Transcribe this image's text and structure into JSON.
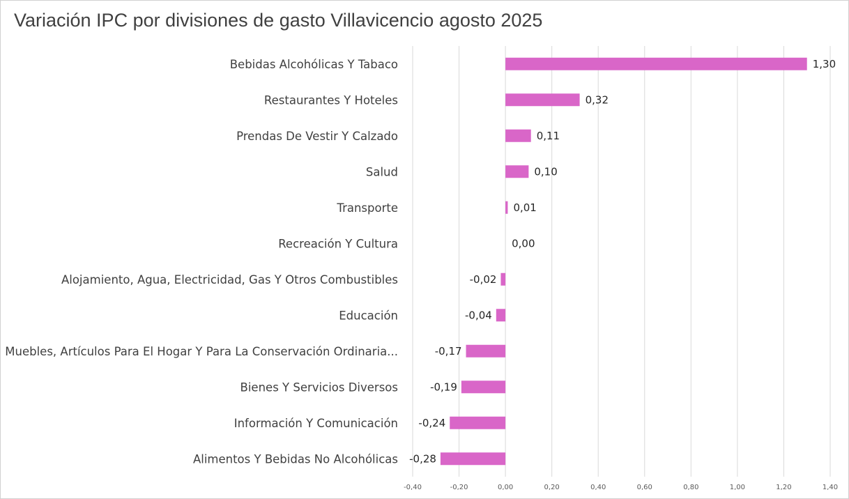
{
  "chart_data": {
    "type": "bar",
    "orientation": "horizontal",
    "title": "Variación IPC por divisiones de gasto Villavicencio agosto 2025",
    "categories": [
      "Bebidas Alcohólicas Y Tabaco",
      "Restaurantes Y Hoteles",
      "Prendas De Vestir Y Calzado",
      "Salud",
      "Transporte",
      "Recreación Y Cultura",
      "Alojamiento, Agua, Electricidad, Gas Y Otros Combustibles",
      "Educación",
      "Muebles, Artículos Para El Hogar Y Para La Conservación Ordinaria...",
      "Bienes Y Servicios Diversos",
      "Información Y Comunicación",
      "Alimentos Y Bebidas No Alcohólicas"
    ],
    "values": [
      1.3,
      0.32,
      0.11,
      0.1,
      0.01,
      0.0,
      -0.02,
      -0.04,
      -0.17,
      -0.19,
      -0.24,
      -0.28
    ],
    "value_labels": [
      "1,30",
      "0,32",
      "0,11",
      "0,10",
      "0,01",
      "0,00",
      "-0,02",
      "-0,04",
      "-0,17",
      "-0,19",
      "-0,24",
      "-0,28"
    ],
    "xlim": [
      -0.4,
      1.4
    ],
    "xticks": [
      -0.4,
      -0.2,
      0.0,
      0.2,
      0.4,
      0.6,
      0.8,
      1.0,
      1.2,
      1.4
    ],
    "xtick_labels": [
      "-0,40",
      "-0,20",
      "0,00",
      "0,20",
      "0,40",
      "0,60",
      "0,80",
      "1,00",
      "1,20",
      "1,40"
    ],
    "grid": true,
    "bar_color": "#d966c8",
    "gridline_color": "#d9d9d9"
  }
}
